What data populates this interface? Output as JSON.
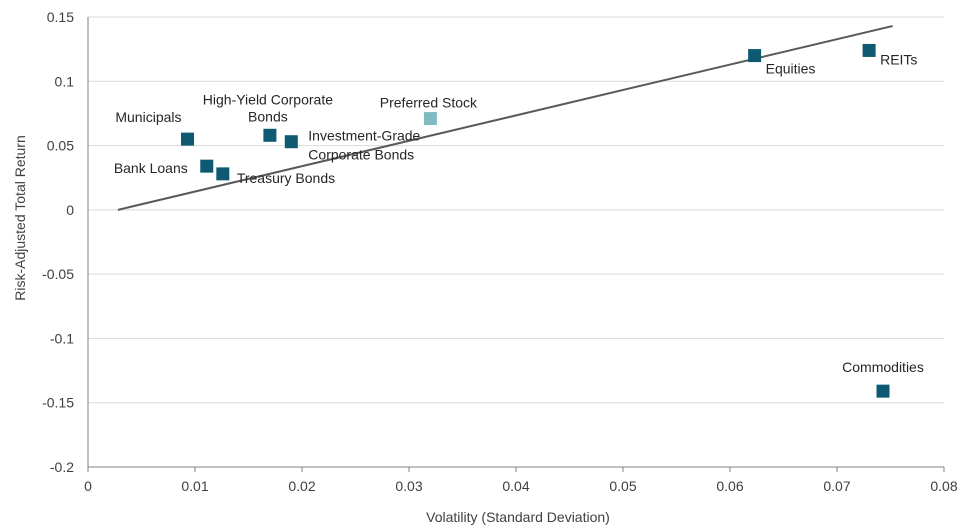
{
  "chart_data": {
    "type": "scatter",
    "title": "",
    "xlabel": "Volatility (Standard Deviation)",
    "ylabel": "Risk-Adjusted Total Return",
    "xlim": [
      0,
      0.08
    ],
    "ylim": [
      -0.2,
      0.15
    ],
    "x_ticks": [
      "0",
      "0.01",
      "0.02",
      "0.03",
      "0.04",
      "0.05",
      "0.06",
      "0.07",
      "0.08"
    ],
    "y_ticks": [
      "0.15",
      "0.1",
      "0.05",
      "0",
      "-0.05",
      "-0.1",
      "-0.15",
      "-0.2"
    ],
    "grid": "horizontal",
    "colors": {
      "marker": "#0e5a73",
      "highlight": "#7fbcc2",
      "trendline": "#595959",
      "grid": "#d9d9d9",
      "axis": "#808080"
    },
    "points": [
      {
        "label": "Municipals",
        "x": 0.0093,
        "y": 0.055,
        "highlight": false
      },
      {
        "label": "Bank Loans",
        "x": 0.0111,
        "y": 0.034,
        "highlight": false
      },
      {
        "label": "Treasury Bonds",
        "x": 0.0126,
        "y": 0.028,
        "highlight": false
      },
      {
        "label": "High-Yield Corporate Bonds",
        "x": 0.017,
        "y": 0.058,
        "highlight": false
      },
      {
        "label": "Investment-Grade Corporate Bonds",
        "x": 0.019,
        "y": 0.053,
        "highlight": false
      },
      {
        "label": "Preferred Stock",
        "x": 0.032,
        "y": 0.071,
        "highlight": true
      },
      {
        "label": "Equities",
        "x": 0.0623,
        "y": 0.12,
        "highlight": false
      },
      {
        "label": "REITs",
        "x": 0.073,
        "y": 0.124,
        "highlight": false
      },
      {
        "label": "Commodities",
        "x": 0.0743,
        "y": -0.141,
        "highlight": false
      }
    ],
    "trendline": {
      "x": [
        0.0028,
        0.0752
      ],
      "y": [
        0.0,
        0.143
      ]
    }
  }
}
